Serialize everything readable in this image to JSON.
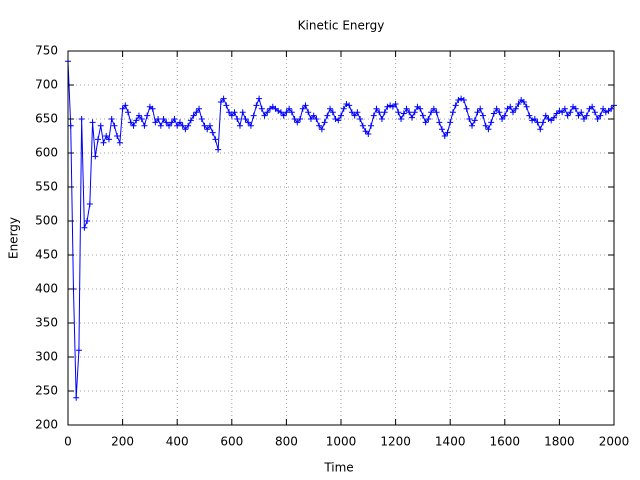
{
  "chart_data": {
    "type": "line",
    "title": "Kinetic Energy",
    "x_label": "Time",
    "y_label": "Energy",
    "color": "#0000ff",
    "marker": "+",
    "grid": true,
    "xlim": [
      0,
      2000
    ],
    "ylim": [
      200,
      750
    ],
    "xticks": [
      0,
      200,
      400,
      600,
      800,
      1000,
      1200,
      1400,
      1600,
      1800,
      2000
    ],
    "yticks": [
      200,
      250,
      300,
      350,
      400,
      450,
      500,
      550,
      600,
      650,
      700,
      750
    ],
    "x": [
      0,
      10,
      20,
      30,
      40,
      50,
      60,
      70,
      80,
      90,
      100,
      110,
      120,
      130,
      140,
      150,
      160,
      170,
      180,
      190,
      200,
      210,
      220,
      230,
      240,
      250,
      260,
      270,
      280,
      290,
      300,
      310,
      320,
      330,
      340,
      350,
      360,
      370,
      380,
      390,
      400,
      410,
      420,
      430,
      440,
      450,
      460,
      470,
      480,
      490,
      500,
      510,
      520,
      530,
      540,
      550,
      560,
      570,
      580,
      590,
      600,
      610,
      620,
      630,
      640,
      650,
      660,
      670,
      680,
      690,
      700,
      710,
      720,
      730,
      740,
      750,
      760,
      770,
      780,
      790,
      800,
      810,
      820,
      830,
      840,
      850,
      860,
      870,
      880,
      890,
      900,
      910,
      920,
      930,
      940,
      950,
      960,
      970,
      980,
      990,
      1000,
      1010,
      1020,
      1030,
      1040,
      1050,
      1060,
      1070,
      1080,
      1090,
      1100,
      1110,
      1120,
      1130,
      1140,
      1150,
      1160,
      1170,
      1180,
      1190,
      1200,
      1210,
      1220,
      1230,
      1240,
      1250,
      1260,
      1270,
      1280,
      1290,
      1300,
      1310,
      1320,
      1330,
      1340,
      1350,
      1360,
      1370,
      1380,
      1390,
      1400,
      1410,
      1420,
      1430,
      1440,
      1450,
      1460,
      1470,
      1480,
      1490,
      1500,
      1510,
      1520,
      1530,
      1540,
      1550,
      1560,
      1570,
      1580,
      1590,
      1600,
      1610,
      1620,
      1630,
      1640,
      1650,
      1660,
      1670,
      1680,
      1690,
      1700,
      1710,
      1720,
      1730,
      1740,
      1750,
      1760,
      1770,
      1780,
      1790,
      1800,
      1810,
      1820,
      1830,
      1840,
      1850,
      1860,
      1870,
      1880,
      1890,
      1900,
      1910,
      1920,
      1930,
      1940,
      1950,
      1960,
      1970,
      1980,
      1990,
      2000
    ],
    "values": [
      735,
      640,
      400,
      240,
      310,
      650,
      490,
      500,
      525,
      645,
      595,
      620,
      640,
      615,
      625,
      620,
      650,
      640,
      625,
      615,
      665,
      670,
      660,
      645,
      640,
      648,
      655,
      650,
      640,
      655,
      668,
      665,
      645,
      650,
      640,
      650,
      645,
      640,
      645,
      650,
      640,
      645,
      640,
      635,
      640,
      648,
      655,
      660,
      665,
      650,
      640,
      635,
      640,
      630,
      620,
      605,
      675,
      680,
      670,
      660,
      655,
      660,
      650,
      640,
      660,
      650,
      645,
      640,
      655,
      670,
      680,
      665,
      655,
      660,
      665,
      668,
      665,
      662,
      660,
      655,
      660,
      665,
      660,
      650,
      645,
      650,
      665,
      670,
      660,
      650,
      655,
      650,
      640,
      635,
      645,
      655,
      665,
      660,
      650,
      648,
      655,
      665,
      672,
      670,
      660,
      655,
      660,
      650,
      640,
      632,
      628,
      640,
      655,
      665,
      660,
      650,
      660,
      668,
      670,
      668,
      672,
      660,
      650,
      658,
      665,
      660,
      652,
      660,
      668,
      665,
      655,
      645,
      650,
      660,
      665,
      660,
      645,
      635,
      625,
      630,
      645,
      660,
      670,
      678,
      680,
      678,
      665,
      650,
      640,
      648,
      660,
      665,
      655,
      640,
      635,
      645,
      658,
      665,
      660,
      650,
      655,
      665,
      668,
      660,
      665,
      672,
      678,
      675,
      668,
      655,
      648,
      650,
      645,
      635,
      645,
      655,
      650,
      648,
      652,
      658,
      662,
      660,
      665,
      655,
      660,
      668,
      665,
      655,
      660,
      650,
      655,
      665,
      668,
      660,
      650,
      655,
      665,
      660,
      662,
      665,
      670
    ]
  }
}
